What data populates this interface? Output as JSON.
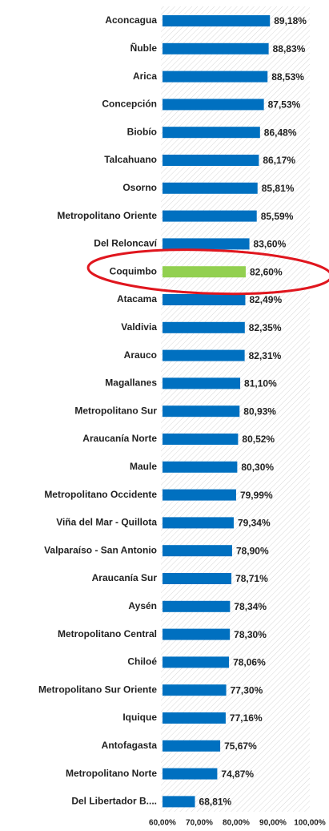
{
  "chart_data": {
    "type": "bar",
    "orientation": "horizontal",
    "categories": [
      "Aconcagua",
      "Ñuble",
      "Arica",
      "Concepción",
      "Biobío",
      "Talcahuano",
      "Osorno",
      "Metropolitano Oriente",
      "Del Reloncaví",
      "Coquimbo",
      "Atacama",
      "Valdivia",
      "Arauco",
      "Magallanes",
      "Metropolitano Sur",
      "Araucanía Norte",
      "Maule",
      "Metropolitano Occidente",
      "Viña del Mar - Quillota",
      "Valparaíso - San Antonio",
      "Araucanía Sur",
      "Aysén",
      "Metropolitano Central",
      "Chiloé",
      "Metropolitano Sur Oriente",
      "Iquique",
      "Antofagasta",
      "Metropolitano Norte",
      "Del Libertador B...."
    ],
    "values": [
      89.18,
      88.83,
      88.53,
      87.53,
      86.48,
      86.17,
      85.81,
      85.59,
      83.6,
      82.6,
      82.49,
      82.35,
      82.31,
      81.1,
      80.93,
      80.52,
      80.3,
      79.99,
      79.34,
      78.9,
      78.71,
      78.34,
      78.3,
      78.06,
      77.3,
      77.16,
      75.67,
      74.87,
      68.81
    ],
    "value_labels": [
      "89,18%",
      "88,83%",
      "88,53%",
      "87,53%",
      "86,48%",
      "86,17%",
      "85,81%",
      "85,59%",
      "83,60%",
      "82,60%",
      "82,49%",
      "82,35%",
      "82,31%",
      "81,10%",
      "80,93%",
      "80,52%",
      "80,30%",
      "79,99%",
      "79,34%",
      "78,90%",
      "78,71%",
      "78,34%",
      "78,30%",
      "78,06%",
      "77,30%",
      "77,16%",
      "75,67%",
      "74,87%",
      "68,81%"
    ],
    "colors": [
      "#0070c0",
      "#0070c0",
      "#0070c0",
      "#0070c0",
      "#0070c0",
      "#0070c0",
      "#0070c0",
      "#0070c0",
      "#0070c0",
      "#92d050",
      "#0070c0",
      "#0070c0",
      "#0070c0",
      "#0070c0",
      "#0070c0",
      "#0070c0",
      "#0070c0",
      "#0070c0",
      "#0070c0",
      "#0070c0",
      "#0070c0",
      "#0070c0",
      "#0070c0",
      "#0070c0",
      "#0070c0",
      "#0070c0",
      "#0070c0",
      "#0070c0",
      "#0070c0"
    ],
    "xlim": [
      60,
      100
    ],
    "xticks": [
      {
        "value": 60,
        "label": "60,00%"
      },
      {
        "value": 70,
        "label": "70,00%"
      },
      {
        "value": 80,
        "label": "80,00%"
      },
      {
        "value": 90,
        "label": "90,00%"
      },
      {
        "value": 100,
        "label": "100,00%"
      }
    ]
  }
}
